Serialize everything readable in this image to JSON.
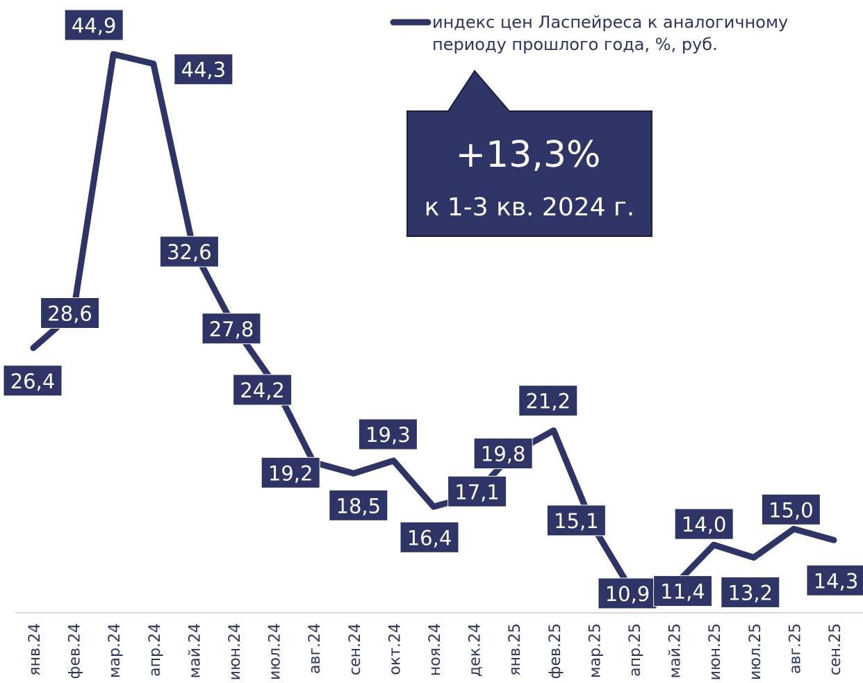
{
  "chart_data": {
    "type": "line",
    "categories": [
      "янв.24",
      "фев.24",
      "мар.24",
      "апр.24",
      "май.24",
      "июн.24",
      "июл.24",
      "авг.24",
      "сен.24",
      "окт.24",
      "ноя.24",
      "дек.24",
      "янв.25",
      "фев.25",
      "мар.25",
      "апр.25",
      "май.25",
      "июн.25",
      "июл.25",
      "авг.25",
      "сен.25"
    ],
    "series": [
      {
        "name": "индекс цен Ласпейреса к аналогичному периоду прошлого года, %, руб.",
        "color": "#2e3566",
        "values": [
          26.4,
          28.6,
          44.9,
          44.3,
          32.6,
          27.8,
          24.2,
          19.2,
          18.5,
          19.3,
          16.4,
          17.1,
          19.8,
          21.2,
          15.1,
          10.9,
          11.4,
          14.0,
          13.2,
          15.0,
          14.3
        ],
        "value_labels": [
          "26,4",
          "28,6",
          "44,9",
          "44,3",
          "32,6",
          "27,8",
          "24,2",
          "19,2",
          "18,5",
          "19,3",
          "16,4",
          "17,1",
          "19,8",
          "21,2",
          "15,1",
          "10,9",
          "11,4",
          "14,0",
          "13,2",
          "15,0",
          "14,3"
        ]
      }
    ],
    "annotations": [
      "+13,3%",
      "к 1-3 кв. 2024 г."
    ]
  }
}
